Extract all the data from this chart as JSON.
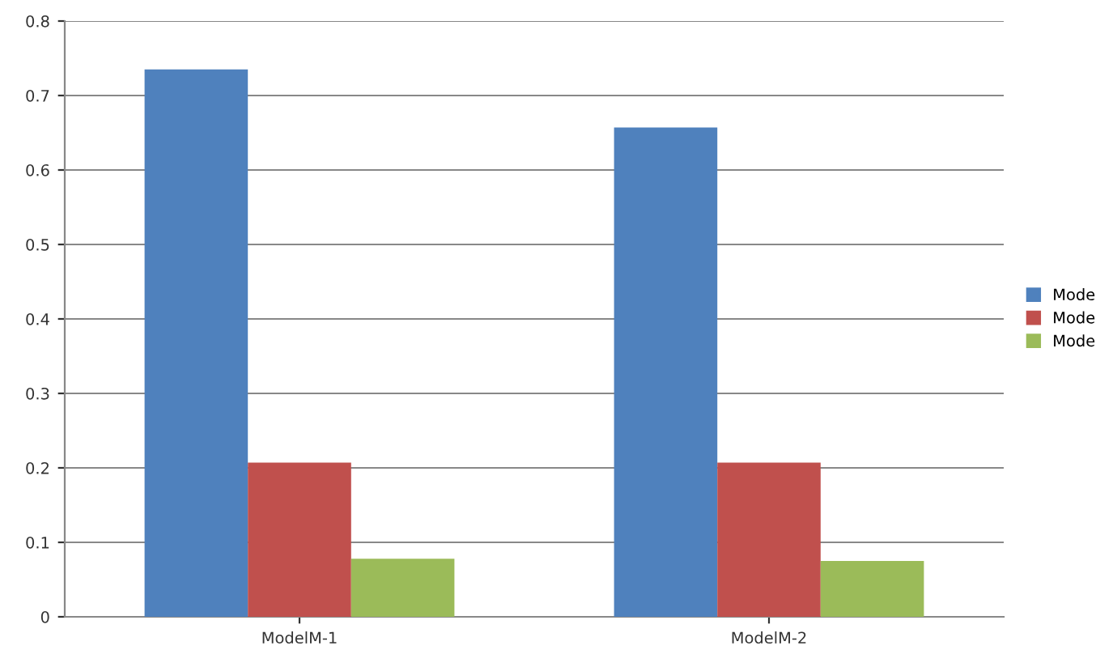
{
  "chart_data": {
    "type": "bar",
    "categories": [
      "ModelM-1",
      "ModelM-2"
    ],
    "series": [
      {
        "name": "Mode",
        "color": "#4f81bd",
        "values": [
          0.735,
          0.657
        ]
      },
      {
        "name": "Mode",
        "color": "#c0504d",
        "values": [
          0.207,
          0.207
        ]
      },
      {
        "name": "Mode",
        "color": "#9bbb59",
        "values": [
          0.078,
          0.075
        ]
      }
    ],
    "ylim": [
      0,
      0.8
    ],
    "yticks": [
      0,
      0.1,
      0.2,
      0.3,
      0.4,
      0.5,
      0.6,
      0.7,
      0.8
    ],
    "grid": "y",
    "legend": "right"
  }
}
